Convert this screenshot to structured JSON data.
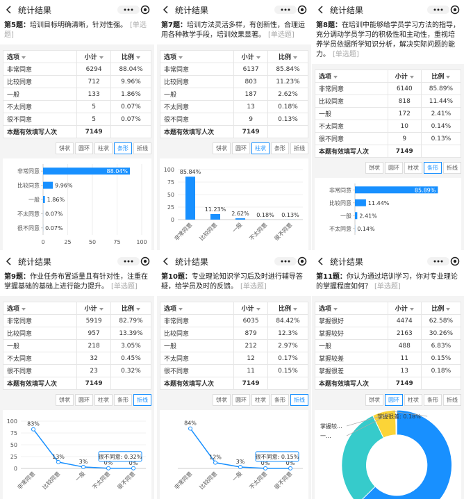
{
  "header_title": "统计结果",
  "tag": "[单选题]",
  "toolbar": [
    "饼状",
    "圆环",
    "柱状",
    "条形",
    "折线"
  ],
  "table_header": [
    "选项",
    "小计",
    "比例"
  ],
  "total_label": "本题有效填写人次",
  "panels": [
    {
      "label": "第5题：",
      "text": "培训目标明确清晰，针对性强。",
      "rows": [
        [
          "非常同意",
          "6294",
          "88.04%"
        ],
        [
          "比较同意",
          "712",
          "9.96%"
        ],
        [
          "一般",
          "133",
          "1.86%"
        ],
        [
          "不太同意",
          "5",
          "0.07%"
        ],
        [
          "很不同意",
          "5",
          "0.07%"
        ]
      ],
      "total": "7149",
      "active_view": "条形",
      "chart": {
        "type": "hbar",
        "color": "#1890ff",
        "categories": [
          "非常同意",
          "比较同意",
          "一般",
          "不太同意",
          "很不同意"
        ],
        "values": [
          88.04,
          9.96,
          1.86,
          0.07,
          0.07
        ],
        "value_labels": [
          "88.04%",
          "9.96%",
          "1.86%",
          "0.07%",
          "0.07%"
        ],
        "xlim": [
          0,
          100
        ],
        "xticks": [
          0,
          25,
          50,
          75,
          100
        ]
      }
    },
    {
      "label": "第7题：",
      "text": "培训方法灵活多样，有创新性，合理运用各种教学手段，培训效果显著。",
      "rows": [
        [
          "非常同意",
          "6137",
          "85.84%"
        ],
        [
          "比较同意",
          "803",
          "11.23%"
        ],
        [
          "一般",
          "187",
          "2.62%"
        ],
        [
          "不太同意",
          "13",
          "0.18%"
        ],
        [
          "很不同意",
          "9",
          "0.13%"
        ]
      ],
      "total": "7149",
      "active_view": "柱状",
      "chart": {
        "type": "bar",
        "color": "#1890ff",
        "categories": [
          "非常同意",
          "比较同意",
          "一般",
          "不太同意",
          "很不同意"
        ],
        "values": [
          85.84,
          11.23,
          2.62,
          0.18,
          0.13
        ],
        "value_labels": [
          "85.84%",
          "11.23%",
          "2.62%",
          "0.18%",
          "0.13%"
        ],
        "ylim": [
          0,
          100
        ],
        "yticks": [
          0,
          25,
          50,
          75,
          100
        ]
      }
    },
    {
      "label": "第8题：",
      "text": "在培训中能够给学员学习方法的指导，充分调动学员学习的积极性和主动性，重视培养学员依据所学知识分析，解决实际问题的能力。",
      "rows": [
        [
          "非常同意",
          "6140",
          "85.89%"
        ],
        [
          "比较同意",
          "818",
          "11.44%"
        ],
        [
          "一般",
          "172",
          "2.41%"
        ],
        [
          "不太同意",
          "10",
          "0.14%"
        ],
        [
          "很不同意",
          "9",
          "0.13%"
        ]
      ],
      "total": "7149",
      "active_view": "条形",
      "chart": {
        "type": "hbar",
        "color": "#1890ff",
        "categories": [
          "非常同意",
          "比较同意",
          "一般",
          "不太同意"
        ],
        "values": [
          85.89,
          11.44,
          2.41,
          0.14
        ],
        "value_labels": [
          "85.89%",
          "11.44%",
          "2.41%",
          "0.14%"
        ],
        "xlim": [
          0,
          100
        ]
      }
    },
    {
      "label": "第9题：",
      "text": "作业任务布置适量且有针对性，注重在掌握基础的基础上进行能力提升。",
      "rows": [
        [
          "非常同意",
          "5919",
          "82.79%"
        ],
        [
          "比较同意",
          "957",
          "13.39%"
        ],
        [
          "一般",
          "218",
          "3.05%"
        ],
        [
          "不太同意",
          "32",
          "0.45%"
        ],
        [
          "很不同意",
          "23",
          "0.32%"
        ]
      ],
      "total": "7149",
      "active_view": "折线",
      "chart": {
        "type": "line",
        "color": "#1890ff",
        "categories": [
          "非常同意",
          "比较同意",
          "一般",
          "不太同意",
          "很不同意"
        ],
        "values": [
          82.79,
          13.39,
          3.05,
          0.45,
          0.32
        ],
        "value_labels": [
          "83%",
          "13%",
          "3%",
          "0%",
          "0%"
        ],
        "ylim": [
          0,
          100
        ],
        "yticks": [
          0,
          25,
          50,
          75,
          100
        ],
        "tooltip": "很不同意: 0.32%"
      }
    },
    {
      "label": "第10题：",
      "text": "专业理论知识学习后及时进行辅导答疑，给学员及时的反馈。",
      "rows": [
        [
          "非常同意",
          "6035",
          "84.42%"
        ],
        [
          "比较同意",
          "879",
          "12.3%"
        ],
        [
          "一般",
          "212",
          "2.97%"
        ],
        [
          "不太同意",
          "12",
          "0.17%"
        ],
        [
          "很不同意",
          "11",
          "0.15%"
        ]
      ],
      "total": "7149",
      "active_view": "折线",
      "chart": {
        "type": "line",
        "color": "#1890ff",
        "categories": [
          "非常同意",
          "比较同意",
          "一般",
          "不太同意",
          "很不同意"
        ],
        "values": [
          84.42,
          12.3,
          2.97,
          0.17,
          0.15
        ],
        "value_labels": [
          "84%",
          "12%",
          "3%",
          "0%",
          "0%"
        ],
        "ylim": [
          0,
          100
        ],
        "tooltip": "很不同意: 0.15%"
      }
    },
    {
      "label": "第11题：",
      "text": "你认为通过培训学习，你对专业理论的掌握程度如何？",
      "rows": [
        [
          "掌握很好",
          "4474",
          "62.58%"
        ],
        [
          "掌握较好",
          "2163",
          "30.26%"
        ],
        [
          "一般",
          "488",
          "6.83%"
        ],
        [
          "掌握较差",
          "11",
          "0.15%"
        ],
        [
          "掌握很差",
          "13",
          "0.18%"
        ]
      ],
      "total": "7149",
      "active_view": "圆环",
      "chart": {
        "type": "donut",
        "colors": [
          "#1890ff",
          "#36cbcb",
          "#fbd437",
          "#4ecb73",
          "#f2637b"
        ],
        "values": [
          62.58,
          30.26,
          6.83,
          0.15,
          0.18
        ],
        "annotations": [
          "掌握很差: 0.18%",
          "掌握较...",
          "一..."
        ]
      }
    }
  ]
}
